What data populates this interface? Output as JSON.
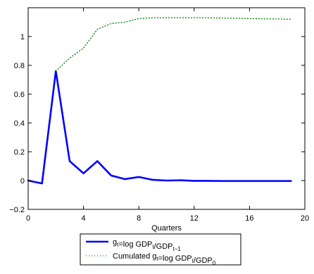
{
  "chart_data": {
    "type": "line",
    "xlabel": "Quarters",
    "ylabel": "",
    "title": "",
    "xlim": [
      0,
      20
    ],
    "ylim": [
      -0.2,
      1.2
    ],
    "xticks": [
      0,
      4,
      8,
      12,
      16,
      20
    ],
    "yticks": [
      -0.2,
      0,
      0.2,
      0.4,
      0.6,
      0.8,
      1
    ],
    "xtick_labels": [
      "0",
      "4",
      "8",
      "12",
      "16",
      "20"
    ],
    "ytick_labels": [
      "−0.2",
      "0",
      "0.2",
      "0.4",
      "0.6",
      "0.8",
      "1"
    ],
    "grid": false,
    "legend_position": "below-plot",
    "series": [
      {
        "name": "g_t=log GDP_t/GDP_{t-1}",
        "legend_parts": [
          {
            "t": "g",
            "s": ""
          },
          {
            "t": "t",
            "s": "sub"
          },
          {
            "t": "=log GDP",
            "s": ""
          },
          {
            "t": "t",
            "s": "sub"
          },
          {
            "t": "/GDP",
            "s": ""
          },
          {
            "t": "t−1",
            "s": "sub"
          }
        ],
        "color": "#0000ff",
        "style": "solid",
        "x": [
          0,
          1,
          2,
          3,
          4,
          5,
          6,
          7,
          8,
          9,
          10,
          11,
          12,
          13,
          14,
          15,
          16,
          17,
          18,
          19
        ],
        "y": [
          0.0,
          -0.02,
          0.76,
          0.135,
          0.05,
          0.135,
          0.035,
          0.01,
          0.025,
          0.005,
          0.0,
          0.002,
          -0.002,
          -0.002,
          -0.003,
          -0.003,
          -0.003,
          -0.003,
          -0.003,
          -0.003
        ]
      },
      {
        "name": "Cumulated g_t=log GDP_t/GDP_0",
        "legend_parts": [
          {
            "t": "Cumulated g",
            "s": ""
          },
          {
            "t": "t",
            "s": "sub"
          },
          {
            "t": "=log GDP",
            "s": ""
          },
          {
            "t": "t",
            "s": "sub"
          },
          {
            "t": "/GDP",
            "s": ""
          },
          {
            "t": "0",
            "s": "sub"
          }
        ],
        "color": "#008000",
        "style": "dotted",
        "x": [
          2,
          3,
          4,
          5,
          6,
          7,
          8,
          9,
          10,
          11,
          12,
          13,
          14,
          15,
          16,
          17,
          18,
          19
        ],
        "y": [
          0.76,
          0.85,
          0.92,
          1.05,
          1.09,
          1.1,
          1.125,
          1.13,
          1.13,
          1.13,
          1.13,
          1.13,
          1.128,
          1.127,
          1.125,
          1.123,
          1.122,
          1.12
        ]
      }
    ]
  }
}
